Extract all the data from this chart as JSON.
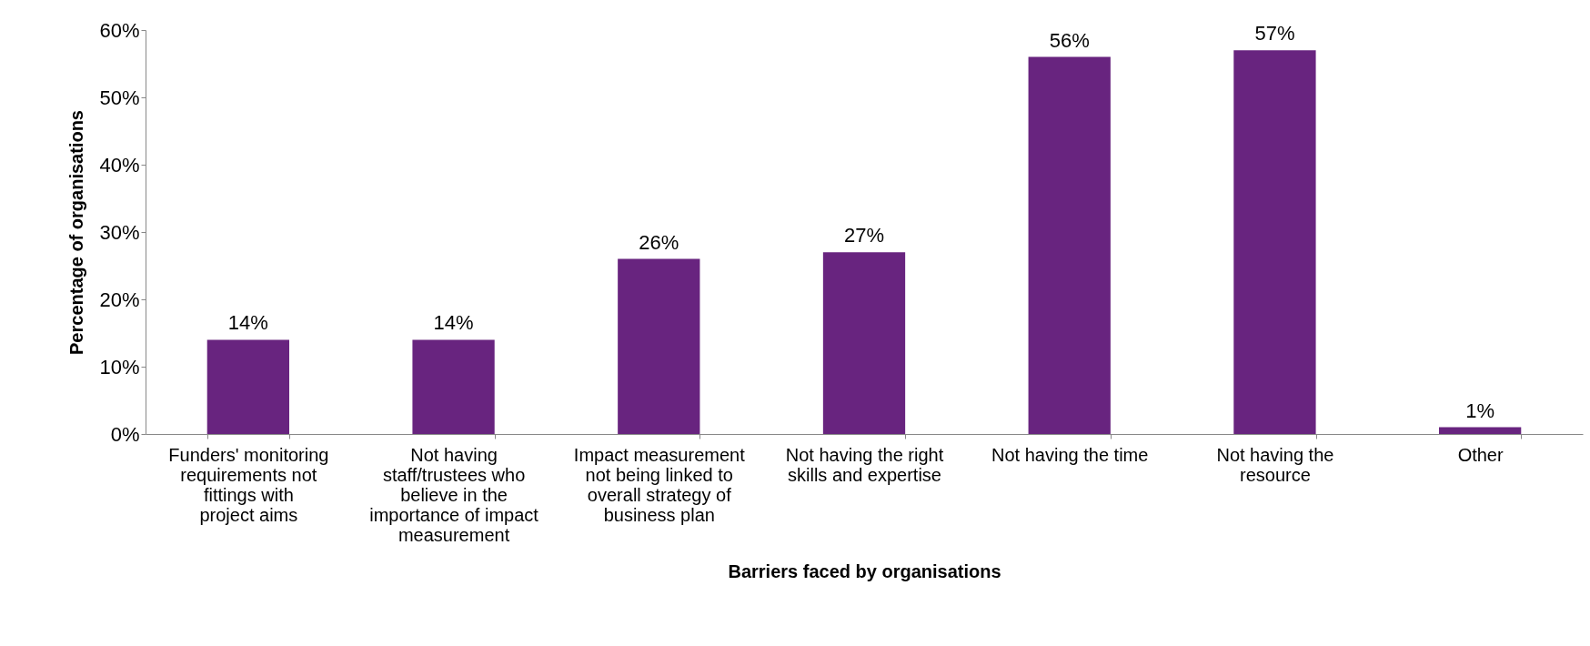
{
  "chart_data": {
    "type": "bar",
    "xlabel": "Barriers faced by organisations",
    "ylabel": "Percentage of organisations",
    "categories": [
      "Funders' monitoring requirements not fittings with project aims",
      "Not having staff/trustees who believe in the importance of impact measurement",
      "Impact measurement not being linked to overall strategy of business plan",
      "Not having the right skills and expertise",
      "Not having the time",
      "Not having the resource",
      "Other"
    ],
    "values": [
      14,
      14,
      26,
      27,
      56,
      57,
      1
    ],
    "value_labels": [
      "14%",
      "14%",
      "26%",
      "27%",
      "56%",
      "57%",
      "1%"
    ],
    "color": "#68247f",
    "ylim": [
      0,
      60
    ],
    "yticks": [
      {
        "value": 0,
        "label": "0%"
      },
      {
        "value": 10,
        "label": "10%"
      },
      {
        "value": 20,
        "label": "20%"
      },
      {
        "value": 30,
        "label": "30%"
      },
      {
        "value": 40,
        "label": "40%"
      },
      {
        "value": 50,
        "label": "50%"
      },
      {
        "value": 60,
        "label": "60%"
      }
    ],
    "grid": false
  }
}
